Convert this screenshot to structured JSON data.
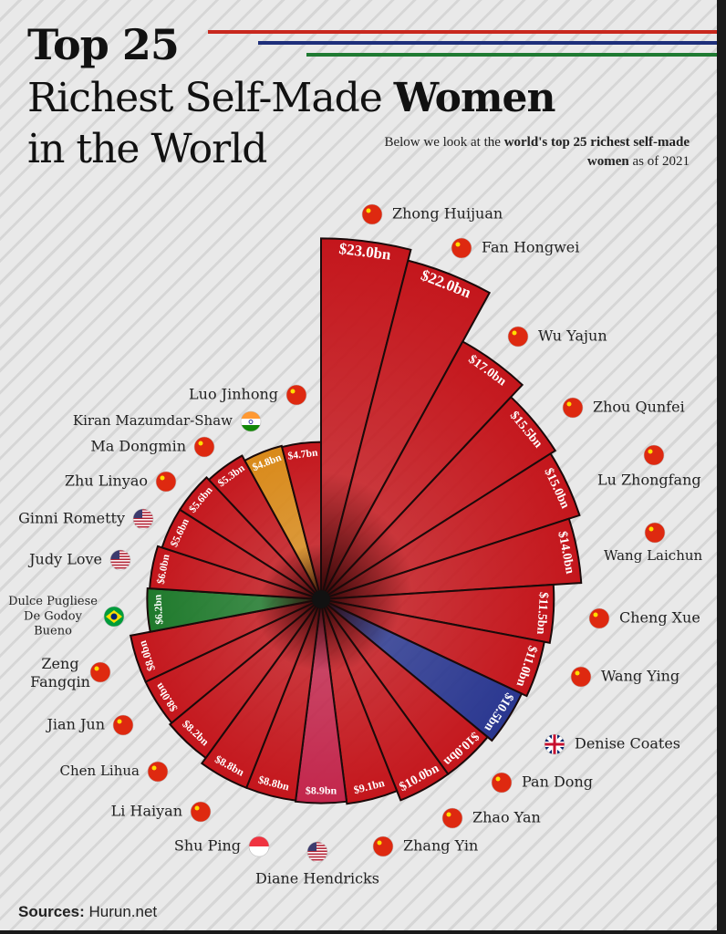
{
  "header": {
    "title_line1": "Top 25",
    "title_line2_regular": "Richest Self-Made ",
    "title_line2_bold": "Women",
    "title_line3": "in the World",
    "subtitle_part1": "Below we look at the ",
    "subtitle_bold1": "world's top 25 richest self-made women",
    "subtitle_part2": " as of 2021",
    "accent_lines": [
      "#c8281e",
      "#1e2f7a",
      "#1f7a32"
    ]
  },
  "footer": {
    "sources_label": "Sources:",
    "sources_value": "Hurun.net"
  },
  "chart_data": {
    "type": "radial-bar",
    "categories": [
      "Zhong Huijuan",
      "Fan Hongwei",
      "Wu Yajun",
      "Zhou Qunfei",
      "Lu Zhongfang",
      "Wang Laichun",
      "Cheng Xue",
      "Wang Ying",
      "Denise Coates",
      "Pan Dong",
      "Zhao Yan",
      "Zhang Yin",
      "Diane Hendricks",
      "Shu Ping",
      "Li Haiyan",
      "Chen Lihua",
      "Jian Jun",
      "Zeng Fangqin",
      "Dulce Pugliese De Godoy Bueno",
      "Judy Love",
      "Ginni Rometty",
      "Zhu Linyao",
      "Ma Dongmin",
      "Kiran Mazumdar-Shaw",
      "Luo Jinhong"
    ],
    "values": [
      23.0,
      22.0,
      17.0,
      15.5,
      15.0,
      14.0,
      11.5,
      11.0,
      10.5,
      10.0,
      10.0,
      9.1,
      8.9,
      8.8,
      8.8,
      8.2,
      8.0,
      8.0,
      6.2,
      6.0,
      5.6,
      5.6,
      5.3,
      4.8,
      4.7
    ],
    "value_labels": [
      "$23.0bn",
      "$22.0bn",
      "$17.0bn",
      "$15.5bn",
      "$15.0bn",
      "$14.0bn",
      "$11.5bn",
      "$11.0bn",
      "$10.5bn",
      "$10.0bn",
      "$10.0bn",
      "$9.1bn",
      "$8.9bn",
      "$8.8bn",
      "$8.8bn",
      "$8.2bn",
      "$8.0bn",
      "$8.0bn",
      "$6.2bn",
      "$6.0bn",
      "$5.6bn",
      "$5.6bn",
      "$5.3bn",
      "$4.8bn",
      "$4.7bn"
    ],
    "countries": [
      "China",
      "China",
      "China",
      "China",
      "China",
      "China",
      "China",
      "China",
      "UK",
      "China",
      "China",
      "China",
      "USA",
      "Singapore",
      "China",
      "China",
      "China",
      "China",
      "Brazil",
      "USA",
      "USA",
      "China",
      "China",
      "India",
      "China"
    ],
    "bar_colors": [
      "#c4161c",
      "#c4161c",
      "#c4161c",
      "#c4161c",
      "#c4161c",
      "#c4161c",
      "#c4161c",
      "#c4161c",
      "#2a3790",
      "#c4161c",
      "#c4161c",
      "#c4161c",
      "#c3264c",
      "#c4161c",
      "#c4161c",
      "#c4161c",
      "#c4161c",
      "#c4161c",
      "#1f7a2c",
      "#c4161c",
      "#c4161c",
      "#c4161c",
      "#c4161c",
      "#d98a1a",
      "#c4161c"
    ]
  }
}
